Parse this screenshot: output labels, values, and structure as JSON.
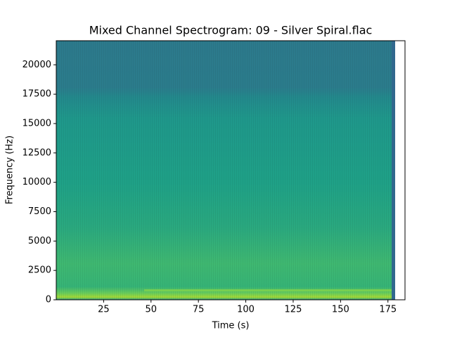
{
  "chart_data": {
    "type": "spectrogram",
    "title": "Mixed Channel Spectrogram: 09 - Silver Spiral.flac",
    "x_label": "Time (s)",
    "y_label": "Frequency (Hz)",
    "xlim": [
      0,
      184
    ],
    "xticks": [
      25,
      50,
      75,
      100,
      125,
      150,
      175
    ],
    "ylim": [
      0,
      22050
    ],
    "yticks": [
      0,
      2500,
      5000,
      7500,
      10000,
      12500,
      15000,
      17500,
      20000
    ],
    "colormap": "viridis"
  }
}
